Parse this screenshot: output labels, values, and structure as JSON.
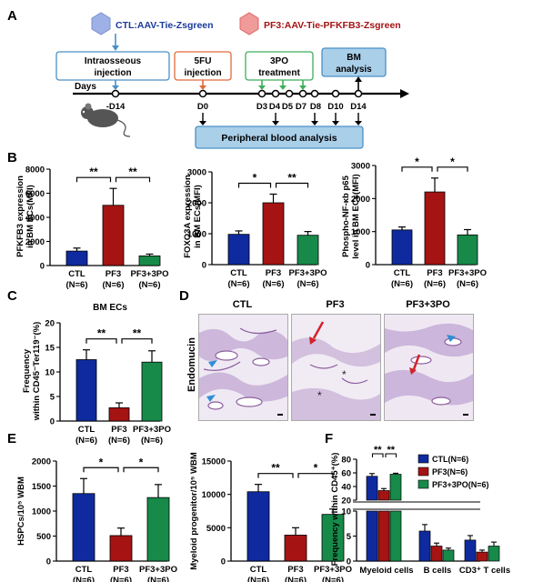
{
  "panel_letters": {
    "a": "A",
    "b": "B",
    "c": "C",
    "d": "D",
    "e": "E",
    "f": "F"
  },
  "schematic": {
    "ctl_label": "CTL:AAV-Tie-Zsgreen",
    "pf3_label": "PF3:AAV-Tie-PFKFB3-Zsgreen",
    "box_intraosseous": [
      "Intraosseous",
      "injection"
    ],
    "box_5fu": [
      "5FU",
      "injection"
    ],
    "box_3po": [
      "3PO",
      "treatment"
    ],
    "box_bm": [
      "BM",
      "analysis"
    ],
    "timeline_label": "Days",
    "days": [
      "-D14",
      "D0",
      "D3",
      "D4",
      "D5",
      "D7",
      "D8",
      "D10",
      "D14"
    ],
    "peripheral": "Peripheral blood analysis",
    "colors": {
      "ctl_icon": "#7b8fd1",
      "pf3_icon": "#e06666",
      "box_blue": "#4a90c8",
      "box_red": "#e06b3a",
      "box_green": "#3fae5a",
      "box_fill": "#a9cfe9"
    }
  },
  "series_colors": {
    "CTL": "#0e2a9e",
    "PF3": "#a51313",
    "PF3+3PO": "#178a49"
  },
  "group_labels": {
    "groups": [
      "CTL",
      "PF3",
      "PF3+3PO"
    ],
    "n": "(N=6)"
  },
  "micro": {
    "ylabel": "Endomucin",
    "titles": [
      "CTL",
      "PF3",
      "PF3+3PO"
    ],
    "star": "*",
    "colors": {
      "bg": "#efe9f3",
      "tissue": "#b79ec9",
      "vessel": "#8d5f9e",
      "blue_arrow": "#2f8fd6",
      "red_arrow": "#d2222a"
    }
  },
  "panel_f": {
    "ylabel": "Frequency within CD45⁺(%)",
    "legend": [
      "CTL(N=6)",
      "PF3(N=6)",
      "PF3+3PO(N=6)"
    ],
    "categories": [
      "Myeloid cells",
      "B cells",
      "CD3⁺ T cells"
    ]
  },
  "chart_data": [
    {
      "type": "bar",
      "panel": "B",
      "ylabel": "PFKFB3 expression in BM ECs(MFI)",
      "categories": [
        "CTL",
        "PF3",
        "PF3+3PO"
      ],
      "values": [
        1200,
        5000,
        800
      ],
      "errors": [
        250,
        1400,
        150
      ],
      "ylim": [
        0,
        8000
      ],
      "yticks": [
        0,
        2000,
        4000,
        6000,
        8000
      ],
      "significance": [
        "**",
        "**"
      ]
    },
    {
      "type": "bar",
      "panel": "B",
      "ylabel": "FOXO3A expression in BM ECs(MFI)",
      "categories": [
        "CTL",
        "PF3",
        "PF3+3PO"
      ],
      "values": [
        980,
        2000,
        950
      ],
      "errors": [
        110,
        280,
        120
      ],
      "ylim": [
        0,
        3000
      ],
      "yticks": [
        0,
        1000,
        2000,
        3000
      ],
      "significance": [
        "*",
        "**"
      ]
    },
    {
      "type": "bar",
      "panel": "B",
      "ylabel": "Phospho-NF-κb p65 level in BM ECs(MFI)",
      "categories": [
        "CTL",
        "PF3",
        "PF3+3PO"
      ],
      "values": [
        1050,
        2200,
        900
      ],
      "errors": [
        90,
        420,
        160
      ],
      "ylim": [
        0,
        3000
      ],
      "yticks": [
        0,
        1000,
        2000,
        3000
      ],
      "significance": [
        "*",
        "*"
      ]
    },
    {
      "type": "bar",
      "panel": "C",
      "title": "BM ECs",
      "ylabel": "Frequency within CD45⁻Ter119⁻(%)",
      "categories": [
        "CTL",
        "PF3",
        "PF3+3PO"
      ],
      "values": [
        12.5,
        2.7,
        12.0
      ],
      "errors": [
        2.0,
        1.0,
        2.3
      ],
      "ylim": [
        0,
        20
      ],
      "yticks": [
        0,
        5,
        10,
        15,
        20
      ],
      "significance": [
        "**",
        "**"
      ]
    },
    {
      "type": "bar",
      "panel": "E",
      "ylabel": "HSPCs/10⁵ WBM",
      "categories": [
        "CTL",
        "PF3",
        "PF3+3PO"
      ],
      "values": [
        1350,
        510,
        1270
      ],
      "errors": [
        300,
        150,
        260
      ],
      "ylim": [
        0,
        2000
      ],
      "yticks": [
        0,
        500,
        1000,
        1500,
        2000
      ],
      "significance": [
        "*",
        "*"
      ]
    },
    {
      "type": "bar",
      "panel": "E",
      "ylabel": "Myeloid progenitor/10⁵ WBM",
      "categories": [
        "CTL",
        "PF3",
        "PF3+3PO"
      ],
      "values": [
        10400,
        3900,
        7000
      ],
      "errors": [
        1100,
        1100,
        800
      ],
      "ylim": [
        0,
        15000
      ],
      "yticks": [
        0,
        5000,
        10000,
        15000
      ],
      "significance": [
        "**",
        "*"
      ]
    },
    {
      "type": "bar",
      "panel": "F",
      "ylabel": "Frequency within CD45⁺(%)",
      "categories": [
        "Myeloid cells",
        "B cells",
        "CD3⁺ T cells"
      ],
      "series": [
        {
          "name": "CTL(N=6)",
          "values": [
            55,
            6,
            4.2
          ],
          "errors": [
            4,
            1.3,
            0.9
          ]
        },
        {
          "name": "PF3(N=6)",
          "values": [
            34,
            3,
            1.8
          ],
          "errors": [
            3,
            0.6,
            0.4
          ]
        },
        {
          "name": "PF3+3PO(N=6)",
          "values": [
            58,
            2.2,
            3.0
          ],
          "errors": [
            1.5,
            0.4,
            0.8
          ]
        }
      ],
      "axis_break": [
        10,
        20
      ],
      "yticks_lower": [
        0,
        5,
        10
      ],
      "yticks_upper": [
        20,
        40,
        60,
        80
      ],
      "significance": [
        "**",
        "**"
      ]
    }
  ]
}
